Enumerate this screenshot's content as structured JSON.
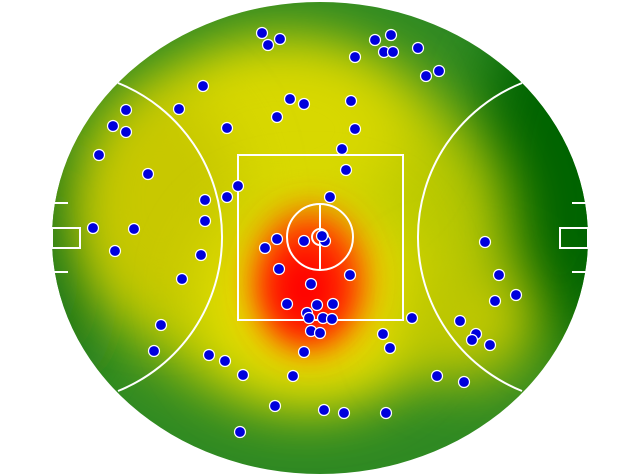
{
  "chart_data": {
    "type": "scatter",
    "color": "#0000dd",
    "xlim": [
      -268,
      268
    ],
    "ylim": [
      -236,
      236
    ],
    "x": [
      -58,
      -40,
      -52,
      55,
      71,
      35,
      64,
      73,
      98,
      119,
      106,
      -117,
      -141,
      -194,
      -207,
      -194,
      -221,
      -30,
      -16,
      -43,
      31,
      -93,
      35,
      22,
      26,
      -172,
      -82,
      -93,
      -115,
      10,
      -115,
      -227,
      -186,
      -205,
      -119,
      -43,
      -55,
      -16,
      5,
      2,
      -41,
      30,
      -138,
      -9,
      -33,
      -3,
      13,
      -13,
      -11,
      3,
      12,
      -9,
      0,
      92,
      63,
      70,
      -16,
      -159,
      -166,
      -111,
      -95,
      -77,
      -27,
      140,
      156,
      152,
      170,
      165,
      179,
      196,
      175,
      117,
      144,
      -45,
      4,
      24,
      66,
      -80
    ],
    "y": [
      205,
      199,
      193,
      198,
      203,
      181,
      186,
      186,
      190,
      167,
      162,
      152,
      129,
      128,
      112,
      106,
      83,
      139,
      134,
      121,
      137,
      110,
      109,
      89,
      68,
      64,
      52,
      41,
      38,
      41,
      17,
      10,
      9,
      -13,
      -17,
      -1,
      -10,
      -3,
      -3,
      2,
      -31,
      -37,
      -41,
      -46,
      -66,
      -67,
      -66,
      -75,
      -80,
      -80,
      -81,
      -93,
      -95,
      -80,
      -96,
      -110,
      -114,
      -87,
      -113,
      -117,
      -123,
      -137,
      -138,
      -83,
      -96,
      -102,
      -107,
      -4,
      -37,
      -57,
      -63,
      -138,
      -144,
      -168,
      -172,
      -175,
      -175,
      -194
    ]
  }
}
